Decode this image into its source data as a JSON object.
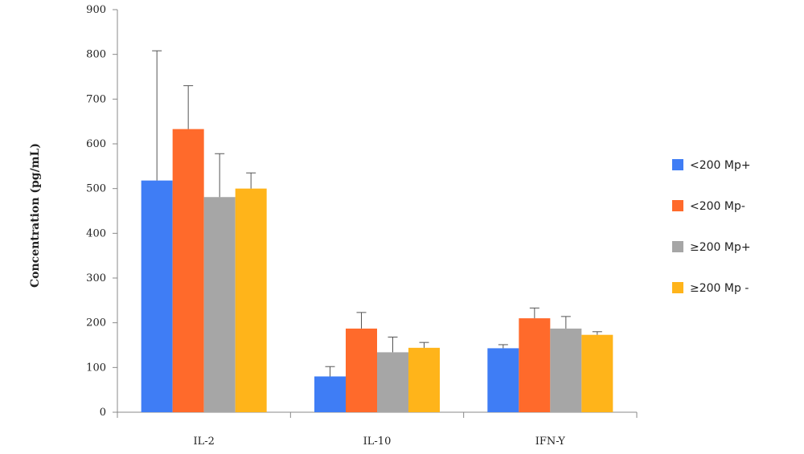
{
  "chart_data": {
    "type": "bar",
    "title": "",
    "xlabel": "",
    "ylabel": "Concentration (pg/mL)",
    "ylim": [
      0,
      900
    ],
    "yticks": [
      0,
      100,
      200,
      300,
      400,
      500,
      600,
      700,
      800,
      900
    ],
    "categories": [
      "IL-2",
      "IL-10",
      "IFN-Y"
    ],
    "series": [
      {
        "name": "<200 Mp+",
        "color": "#3f7df5",
        "values": [
          518,
          80,
          143
        ],
        "errors": [
          290,
          22,
          8
        ]
      },
      {
        "name": "<200 Mp-",
        "color": "#ff6a2b",
        "values": [
          633,
          187,
          210
        ],
        "errors": [
          97,
          36,
          23
        ]
      },
      {
        "name": "≥200 Mp+",
        "color": "#a6a6a6",
        "values": [
          481,
          134,
          187
        ],
        "errors": [
          97,
          34,
          27
        ]
      },
      {
        "name": "≥200 Mp -",
        "color": "#ffb41a",
        "values": [
          500,
          144,
          173
        ],
        "errors": [
          35,
          12,
          7
        ]
      }
    ],
    "legend_position": "right",
    "grid": false
  }
}
